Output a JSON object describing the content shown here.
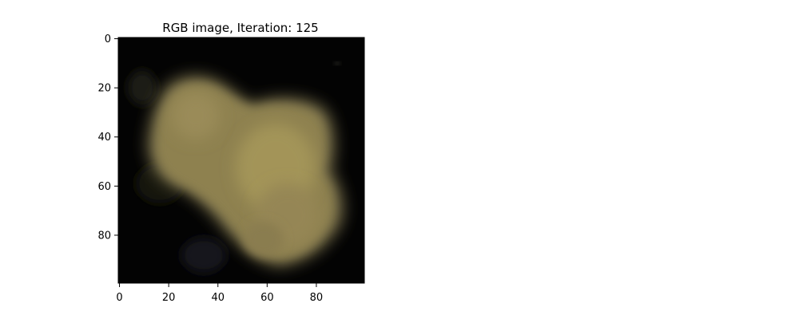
{
  "figure": {
    "title": "RGB image, Iteration: 125",
    "x_axis": {
      "ticks": [
        0,
        20,
        40,
        60,
        80
      ],
      "range": [
        0,
        100
      ]
    },
    "y_axis": {
      "ticks": [
        0,
        20,
        40,
        60,
        80
      ],
      "range": [
        0,
        100
      ]
    }
  },
  "image": {
    "description_colors": {
      "background": "#030303",
      "blob_primary": "#9a8a55",
      "blob_highlight": "#a39458",
      "blob_shadow": "#5d5a3c"
    }
  }
}
